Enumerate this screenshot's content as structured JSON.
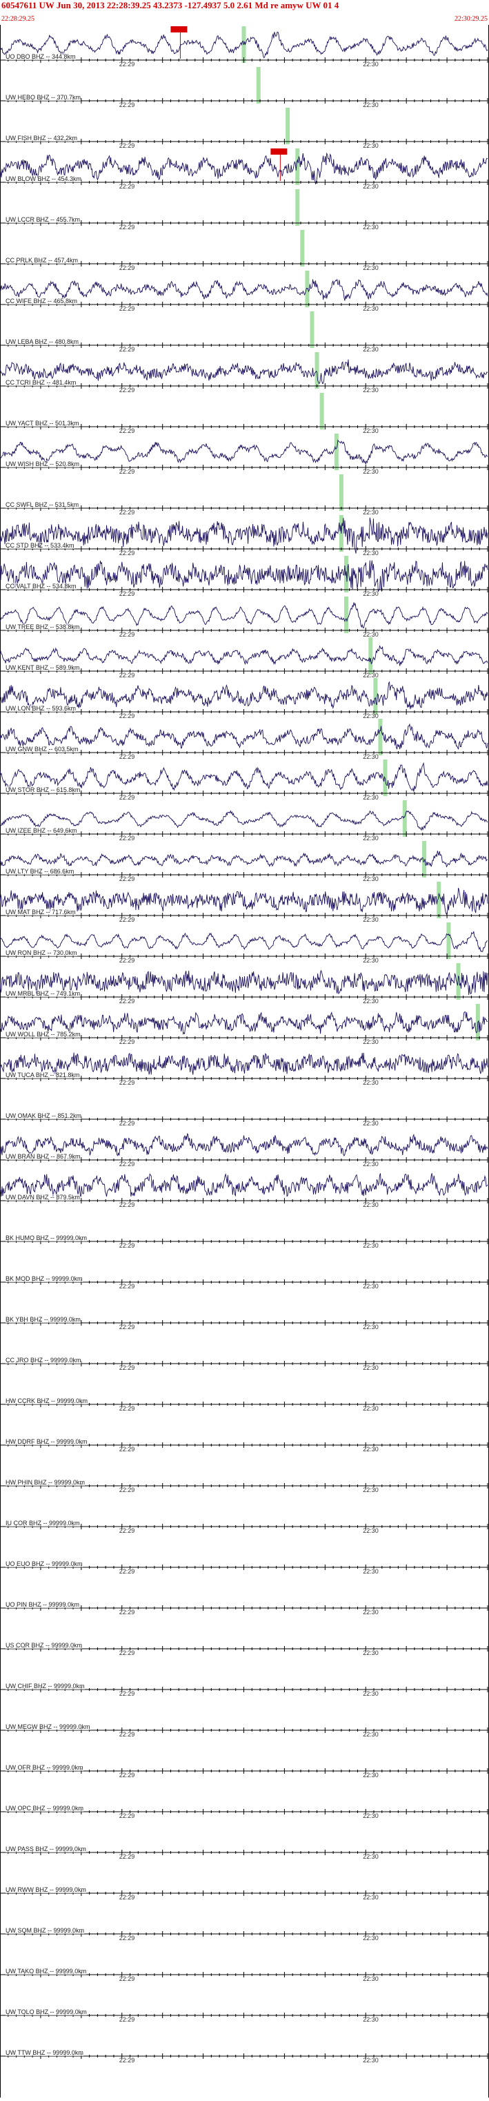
{
  "header": {
    "title": "60547611 UW Jun 30, 2013 22:28:39.25    43.2373 -127.4937   5.0 2.61 Md re amyw UW 01   4",
    "start_time": "22:28:29.25",
    "end_time": "22:30:29.25",
    "title_color": "#d80000"
  },
  "time_axis": {
    "minute_labels": [
      "22:29",
      "22:30"
    ],
    "minute_positions": [
      0.25,
      0.75
    ]
  },
  "colors": {
    "trace": "#1a0f5c",
    "pick_marker": "#a8e0a8",
    "pick_flag": "#d80000",
    "grid": "#000000"
  },
  "origin_flag_label": "ev",
  "stations": [
    {
      "label": "UO DBO BHZ -- 344.8km",
      "active": true,
      "amp": 0.55,
      "noise": 0.15,
      "pick": 0.5,
      "flag": true,
      "flagx": 0.35
    },
    {
      "label": "UW HEBO BHZ -- 370.7km",
      "active": false,
      "pick": 0.53
    },
    {
      "label": "UW FISH BHZ -- 432.2km",
      "active": false,
      "pick": 0.59
    },
    {
      "label": "UW BLOW BHZ -- 454.3km",
      "active": true,
      "amp": 0.5,
      "noise": 0.35,
      "pick": 0.61,
      "flag": true,
      "flagx": 0.555
    },
    {
      "label": "UW LCCR BHZ -- 455.7km",
      "active": false,
      "pick": 0.61
    },
    {
      "label": "CC PRLK BHZ -- 457.4km",
      "active": false,
      "pick": 0.62
    },
    {
      "label": "CC WIFE BHZ -- 465.8km",
      "active": true,
      "amp": 0.45,
      "noise": 0.2,
      "pick": 0.63
    },
    {
      "label": "UW LEBA BHZ -- 480.8km",
      "active": false,
      "pick": 0.64
    },
    {
      "label": "CC TCRI BHZ -- 481.4km",
      "active": true,
      "amp": 0.35,
      "noise": 0.3,
      "pick": 0.65
    },
    {
      "label": "UW YACT BHZ -- 501.3km",
      "active": false,
      "pick": 0.66
    },
    {
      "label": "UW WISH BHZ -- 520.8km",
      "active": true,
      "amp": 0.55,
      "noise": 0.15,
      "pick": 0.69
    },
    {
      "label": "CC SWFL BHZ -- 531.5km",
      "active": false,
      "pick": 0.7
    },
    {
      "label": "CC STD BHZ -- 533.4km",
      "active": true,
      "amp": 0.4,
      "noise": 0.55,
      "pick": 0.7
    },
    {
      "label": "CC VALT BHZ -- 534.8km",
      "active": true,
      "amp": 0.4,
      "noise": 0.55,
      "pick": 0.71
    },
    {
      "label": "UW TREE BHZ -- 538.8km",
      "active": true,
      "amp": 0.55,
      "noise": 0.1,
      "pick": 0.71
    },
    {
      "label": "UW KENT BHZ -- 589.9km",
      "active": true,
      "amp": 0.4,
      "noise": 0.15,
      "pick": 0.76
    },
    {
      "label": "UW LON BHZ -- 593.6km",
      "active": true,
      "amp": 0.45,
      "noise": 0.35,
      "pick": 0.77
    },
    {
      "label": "UW GNW BHZ -- 603.5km",
      "active": true,
      "amp": 0.5,
      "noise": 0.25,
      "pick": 0.78
    },
    {
      "label": "UW STOR BHZ -- 615.8km",
      "active": true,
      "amp": 0.55,
      "noise": 0.2,
      "pick": 0.79
    },
    {
      "label": "UW IZEE BHZ -- 649.6km",
      "active": true,
      "amp": 0.45,
      "noise": 0.1,
      "pick": 0.83
    },
    {
      "label": "UW LTY BHZ -- 686.6km",
      "active": true,
      "amp": 0.3,
      "noise": 0.15,
      "pick": 0.87
    },
    {
      "label": "UW MAT BHZ -- 717.6km",
      "active": true,
      "amp": 0.3,
      "noise": 0.45,
      "pick": 0.9
    },
    {
      "label": "UW RON BHZ -- 730.0km",
      "active": true,
      "amp": 0.45,
      "noise": 0.1,
      "pick": 0.92
    },
    {
      "label": "UW MRBL BHZ -- 749.1km",
      "active": true,
      "amp": 0.3,
      "noise": 0.5,
      "pick": 0.94
    },
    {
      "label": "UW WOLL BHZ -- 785.2km",
      "active": true,
      "amp": 0.4,
      "noise": 0.35,
      "pick": 0.98
    },
    {
      "label": "UW TUCA BHZ -- 821.8km",
      "active": true,
      "amp": 0.3,
      "noise": 0.45,
      "pick": null
    },
    {
      "label": "UW OMAK BHZ -- 851.2km",
      "active": false,
      "pick": null
    },
    {
      "label": "UW BRAN BHZ -- 867.9km",
      "active": true,
      "amp": 0.45,
      "noise": 0.3,
      "pick": null
    },
    {
      "label": "UW DAVN BHZ -- 879.5km",
      "active": true,
      "amp": 0.45,
      "noise": 0.4,
      "pick": null
    },
    {
      "label": "BK HUMO BHZ -- 99999.0km",
      "active": false,
      "pick": null
    },
    {
      "label": "BK MOD BHZ -- 99999.0km",
      "active": false,
      "pick": null
    },
    {
      "label": "BK YBH BHZ -- 99999.0km",
      "active": false,
      "pick": null
    },
    {
      "label": "CC JRO BHZ -- 99999.0km",
      "active": false,
      "pick": null
    },
    {
      "label": "HW CCRK BHZ -- 99999.0km",
      "active": false,
      "pick": null
    },
    {
      "label": "HW DDRF BHZ -- 99999.0km",
      "active": false,
      "pick": null
    },
    {
      "label": "HW PHIN BHZ -- 99999.0km",
      "active": false,
      "pick": null
    },
    {
      "label": "IU COR BHZ -- 99999.0km",
      "active": false,
      "pick": null
    },
    {
      "label": "UO EUO BHZ -- 99999.0km",
      "active": false,
      "pick": null
    },
    {
      "label": "UO PIN BHZ -- 99999.0km",
      "active": false,
      "pick": null
    },
    {
      "label": "US COR BHZ -- 99999.0km",
      "active": false,
      "pick": null
    },
    {
      "label": "UW CHIF BHZ -- 99999.0km",
      "active": false,
      "pick": null
    },
    {
      "label": "UW MEGW BHZ -- 99999.0km",
      "active": false,
      "pick": null
    },
    {
      "label": "UW OFR BHZ -- 99999.0km",
      "active": false,
      "pick": null
    },
    {
      "label": "UW OPC BHZ -- 99999.0km",
      "active": false,
      "pick": null
    },
    {
      "label": "UW PASS BHZ -- 99999.0km",
      "active": false,
      "pick": null
    },
    {
      "label": "UW RWW BHZ -- 99999.0km",
      "active": false,
      "pick": null
    },
    {
      "label": "UW SQM BHZ -- 99999.0km",
      "active": false,
      "pick": null
    },
    {
      "label": "UW TAKO BHZ -- 99999.0km",
      "active": false,
      "pick": null
    },
    {
      "label": "UW TOLO BHZ -- 99999.0km",
      "active": false,
      "pick": null
    },
    {
      "label": "UW TTW BHZ -- 99999.0km",
      "active": false,
      "pick": null
    }
  ]
}
